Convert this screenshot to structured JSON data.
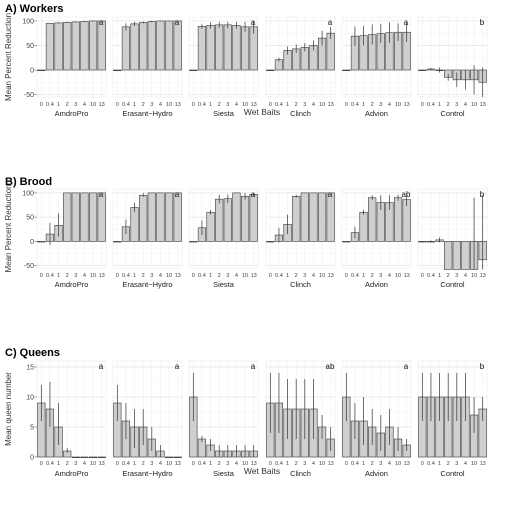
{
  "chart_data": [
    {
      "type": "bar",
      "title": "A) Workers",
      "xlabel": "Wet Baits",
      "ylabel": "Mean Percent Reduction",
      "ylim": [
        -55,
        108
      ],
      "yticks": [
        -50,
        0,
        50,
        100
      ],
      "grid": true,
      "doses": [
        "0",
        "0.4",
        "1",
        "2",
        "3",
        "4",
        "10",
        "13"
      ],
      "facets": [
        {
          "name": "AmdroPro",
          "values": [
            0,
            95,
            96,
            97,
            98,
            99,
            100,
            100
          ],
          "err_lo": [
            0,
            95,
            95,
            96,
            97,
            98,
            99,
            99
          ],
          "err_hi": [
            0,
            96,
            97,
            98,
            99,
            100,
            100,
            100
          ],
          "letter": "a"
        },
        {
          "name": "Erasant−Hydro",
          "values": [
            0,
            88,
            94,
            97,
            99,
            100,
            100,
            100
          ],
          "err_lo": [
            0,
            80,
            90,
            95,
            97,
            99,
            99,
            99
          ],
          "err_hi": [
            0,
            95,
            98,
            99,
            100,
            100,
            100,
            100
          ],
          "letter": "a"
        },
        {
          "name": "Siesta",
          "values": [
            0,
            89,
            91,
            92,
            92,
            91,
            88,
            88
          ],
          "err_lo": [
            0,
            84,
            84,
            86,
            85,
            84,
            78,
            74
          ],
          "err_hi": [
            0,
            94,
            97,
            98,
            98,
            98,
            98,
            100
          ],
          "letter": "a"
        },
        {
          "name": "Clinch",
          "values": [
            0,
            21,
            40,
            43,
            46,
            50,
            65,
            75
          ],
          "err_lo": [
            0,
            17,
            31,
            35,
            38,
            40,
            50,
            63
          ],
          "err_hi": [
            0,
            25,
            48,
            52,
            55,
            60,
            80,
            88
          ],
          "letter": "a"
        },
        {
          "name": "Advion",
          "values": [
            0,
            69,
            70,
            72,
            74,
            76,
            77,
            77
          ],
          "err_lo": [
            0,
            49,
            50,
            52,
            55,
            55,
            59,
            57
          ],
          "err_hi": [
            0,
            89,
            90,
            93,
            94,
            97,
            95,
            97
          ],
          "letter": "a"
        },
        {
          "name": "Control",
          "values": [
            0,
            2,
            0,
            -15,
            -20,
            -20,
            -20,
            -25
          ],
          "err_lo": [
            0,
            0,
            -5,
            -22,
            -35,
            -40,
            -50,
            -55
          ],
          "err_hi": [
            0,
            4,
            5,
            -8,
            -5,
            0,
            10,
            5
          ],
          "letter": "b"
        }
      ]
    },
    {
      "type": "bar",
      "title": "B) Brood",
      "xlabel": "",
      "ylabel": "Mean Percent Reduction",
      "ylim": [
        -55,
        108
      ],
      "yticks": [
        -50,
        0,
        50,
        100
      ],
      "grid": true,
      "doses": [
        "0",
        "0.4",
        "1",
        "2",
        "3",
        "4",
        "10",
        "13"
      ],
      "facets": [
        {
          "name": "AmdroPro",
          "values": [
            0,
            15,
            33,
            100,
            100,
            100,
            100,
            100
          ],
          "err_lo": [
            0,
            -8,
            10,
            100,
            100,
            100,
            100,
            100
          ],
          "err_hi": [
            0,
            38,
            58,
            100,
            100,
            100,
            100,
            100
          ],
          "letter": "a"
        },
        {
          "name": "Erasant−Hydro",
          "values": [
            0,
            30,
            70,
            95,
            100,
            100,
            100,
            100
          ],
          "err_lo": [
            0,
            15,
            60,
            92,
            100,
            100,
            100,
            100
          ],
          "err_hi": [
            0,
            45,
            80,
            100,
            100,
            100,
            100,
            100
          ],
          "letter": "a"
        },
        {
          "name": "Siesta",
          "values": [
            0,
            28,
            60,
            87,
            88,
            100,
            93,
            97
          ],
          "err_lo": [
            0,
            13,
            55,
            78,
            79,
            100,
            86,
            93
          ],
          "err_hi": [
            0,
            43,
            65,
            96,
            97,
            100,
            100,
            100
          ],
          "letter": "a"
        },
        {
          "name": "Clinch",
          "values": [
            0,
            13,
            35,
            93,
            100,
            100,
            100,
            100
          ],
          "err_lo": [
            0,
            -2,
            15,
            90,
            100,
            100,
            100,
            100
          ],
          "err_hi": [
            0,
            28,
            55,
            96,
            100,
            100,
            100,
            100
          ],
          "letter": "a"
        },
        {
          "name": "Advion",
          "values": [
            0,
            18,
            60,
            90,
            80,
            80,
            90,
            86
          ],
          "err_lo": [
            0,
            6,
            55,
            85,
            65,
            65,
            84,
            73
          ],
          "err_hi": [
            0,
            30,
            65,
            95,
            95,
            95,
            96,
            99
          ],
          "letter": "ab"
        },
        {
          "name": "Control",
          "values": [
            0,
            0,
            3,
            -58,
            -58,
            -58,
            -58,
            -38
          ],
          "err_lo": [
            0,
            -2,
            -2,
            -58,
            -58,
            -58,
            -58,
            -58
          ],
          "err_hi": [
            0,
            2,
            8,
            -58,
            -58,
            -58,
            90,
            95
          ],
          "letter": "b"
        }
      ]
    },
    {
      "type": "bar",
      "title": "C) Queens",
      "xlabel": "Wet Baits",
      "ylabel": "Mean queen number",
      "ylim": [
        0,
        16
      ],
      "yticks": [
        0,
        5,
        10,
        15
      ],
      "grid": true,
      "doses": [
        "0",
        "0.4",
        "1",
        "2",
        "3",
        "4",
        "10",
        "13"
      ],
      "facets": [
        {
          "name": "AmdroPro",
          "values": [
            9,
            8,
            5,
            1,
            0,
            0,
            0,
            0
          ],
          "err_lo": [
            6,
            5,
            2,
            0.7,
            0,
            0,
            0,
            0
          ],
          "err_hi": [
            12,
            12.5,
            9,
            1.5,
            0,
            0,
            0,
            0
          ],
          "letter": "a"
        },
        {
          "name": "Erasant−Hydro",
          "values": [
            9,
            6,
            5,
            5,
            3,
            1,
            0,
            0
          ],
          "err_lo": [
            6,
            3,
            1.5,
            2,
            1,
            0,
            0,
            0
          ],
          "err_hi": [
            12,
            9,
            8,
            8,
            5,
            2,
            0,
            0
          ],
          "letter": "a"
        },
        {
          "name": "Siesta",
          "values": [
            10,
            3,
            2,
            1,
            1,
            1,
            1,
            1
          ],
          "err_lo": [
            6,
            2.5,
            1,
            0,
            0,
            0,
            0,
            0
          ],
          "err_hi": [
            14,
            3.5,
            3,
            2,
            2,
            2,
            2,
            2
          ],
          "letter": "a"
        },
        {
          "name": "Clinch",
          "values": [
            9,
            9,
            8,
            8,
            8,
            8,
            5,
            3
          ],
          "err_lo": [
            4,
            4,
            3,
            3,
            3,
            3,
            3,
            1
          ],
          "err_hi": [
            14,
            14,
            13,
            13,
            13,
            13,
            7,
            5
          ],
          "letter": "ab"
        },
        {
          "name": "Advion",
          "values": [
            10,
            6,
            6,
            5,
            4,
            5,
            3,
            2
          ],
          "err_lo": [
            6,
            3,
            2,
            2,
            1,
            2,
            1,
            1
          ],
          "err_hi": [
            14,
            9,
            10,
            8,
            7,
            8,
            5,
            3
          ],
          "letter": "a"
        },
        {
          "name": "Control",
          "values": [
            10,
            10,
            10,
            10,
            10,
            10,
            7,
            8
          ],
          "err_lo": [
            6,
            6,
            6,
            6,
            6,
            6,
            4,
            6
          ],
          "err_hi": [
            14,
            14,
            14,
            14,
            14,
            14,
            10,
            10
          ],
          "letter": "b"
        }
      ]
    }
  ]
}
